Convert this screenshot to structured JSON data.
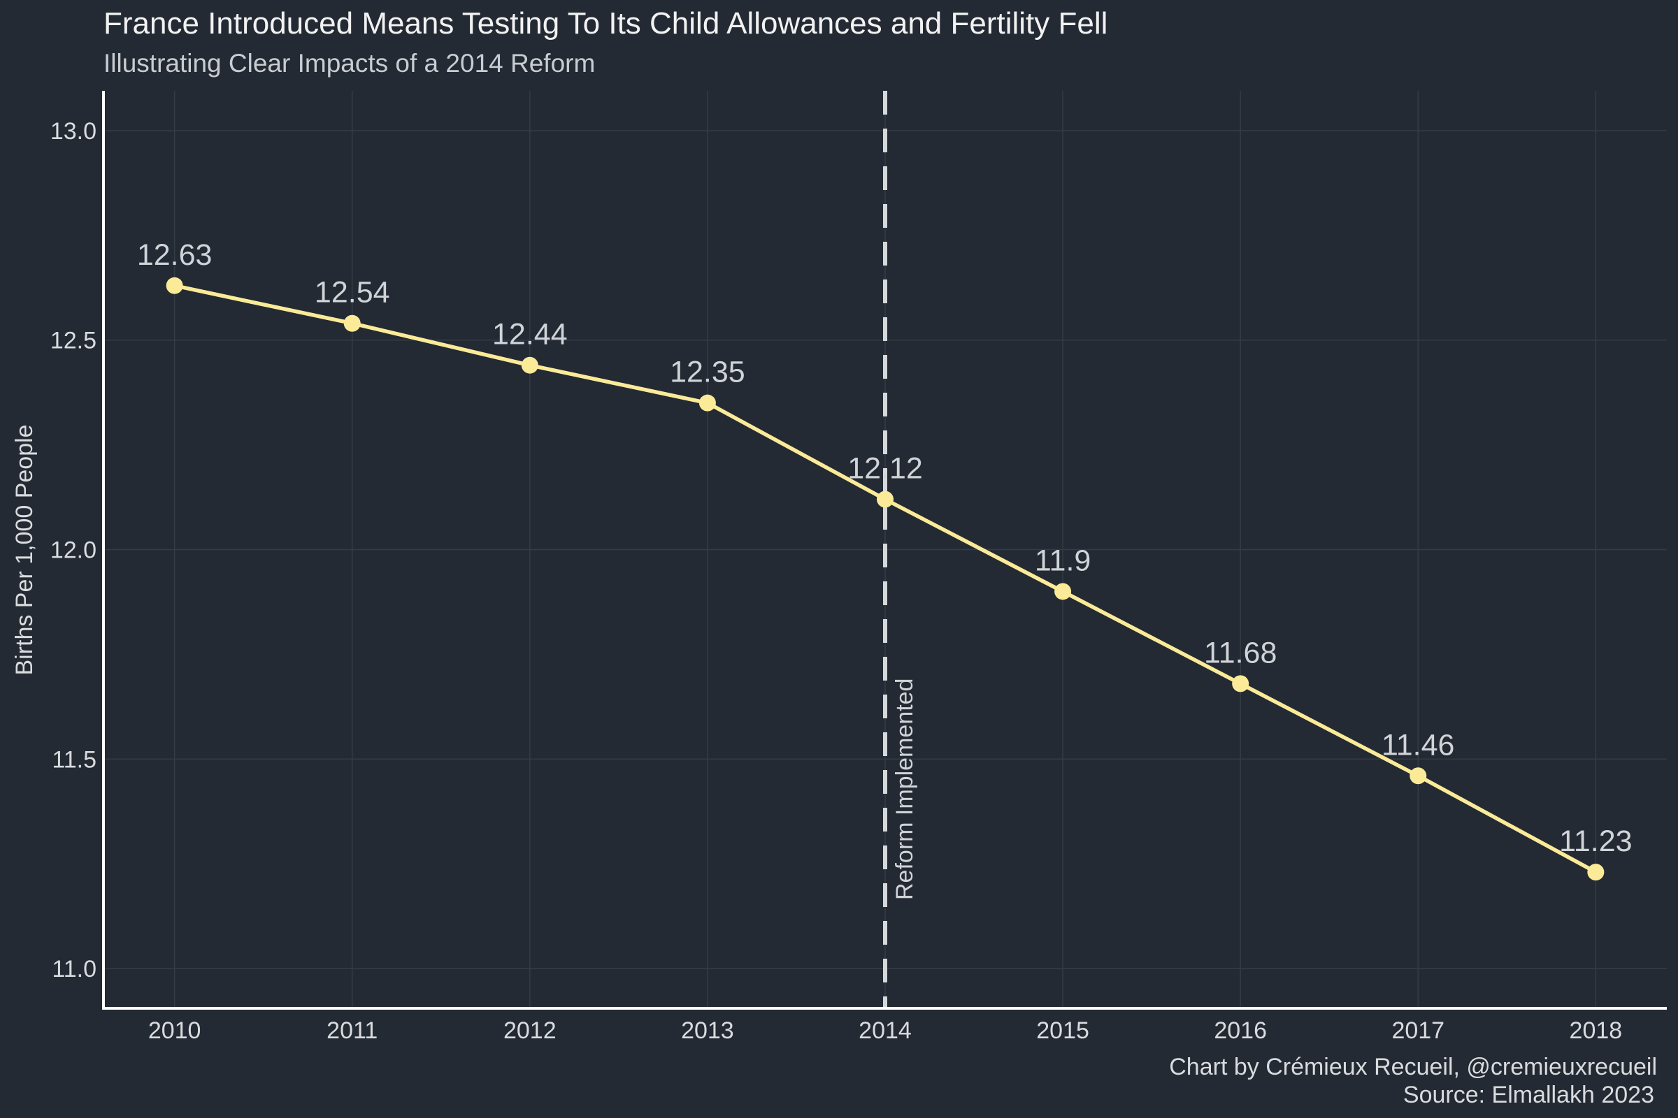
{
  "chart_data": {
    "type": "line",
    "title": "France Introduced Means Testing To Its Child Allowances and Fertility Fell",
    "subtitle": "Illustrating Clear Impacts of a 2014 Reform",
    "xlabel": "",
    "ylabel": "Births Per 1,000 People",
    "x": [
      2010,
      2011,
      2012,
      2013,
      2014,
      2015,
      2016,
      2017,
      2018
    ],
    "x_tick_labels": [
      "2010",
      "2011",
      "2012",
      "2013",
      "2014",
      "2015",
      "2016",
      "2017",
      "2018"
    ],
    "series": [
      {
        "name": "Births Per 1,000 People",
        "values": [
          12.63,
          12.54,
          12.44,
          12.35,
          12.12,
          11.9,
          11.68,
          11.46,
          11.23
        ],
        "data_labels": [
          "12.63",
          "12.54",
          "12.44",
          "12.35",
          "12.12",
          "11.9",
          "11.68",
          "11.46",
          "11.23"
        ],
        "color": "#fbeb98"
      }
    ],
    "y_ticks": [
      11.0,
      11.5,
      12.0,
      12.5,
      13.0
    ],
    "y_tick_labels": [
      "11.0",
      "11.5",
      "12.0",
      "12.5",
      "13.0"
    ],
    "xlim": [
      2009.6,
      2018.4
    ],
    "ylim": [
      10.905,
      13.095
    ],
    "grid": true,
    "annotations": [
      {
        "x": 2014,
        "type": "vertical-dashed-line",
        "label": "Reform Implemented"
      }
    ],
    "caption": [
      "Chart by Crémieux Recueil, @cremieuxrecueil",
      "Source: Elmallakh 2023"
    ]
  },
  "colors": {
    "background": "#232a33",
    "line": "#fbeb98",
    "grid": "#343c46",
    "text": "#d9dbde"
  }
}
